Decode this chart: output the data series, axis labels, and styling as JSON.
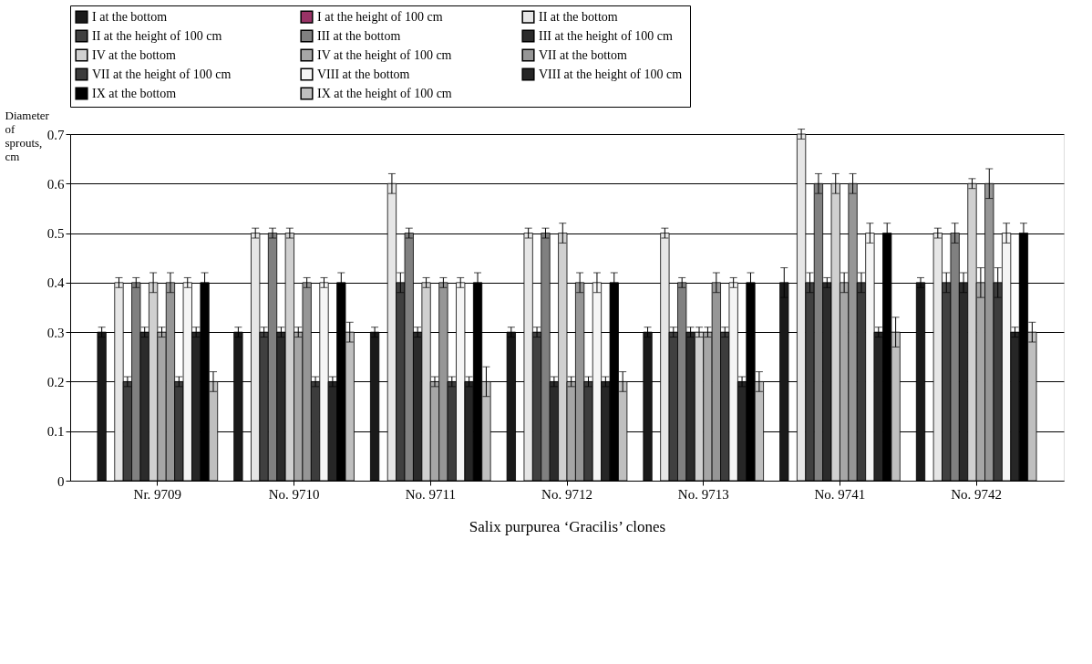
{
  "chart_data": {
    "type": "bar",
    "xlabel": "Salix purpurea ‘Gracilis’ clones",
    "ylabel": "Diameter of sprouts, cm",
    "categories": [
      "Nr. 9709",
      "No. 9710",
      "No. 9711",
      "No. 9712",
      "No. 9713",
      "No. 9741",
      "No. 9742"
    ],
    "ylim": [
      0,
      0.7
    ],
    "yticks": [
      0,
      0.1,
      0.2,
      0.3,
      0.4,
      0.5,
      0.6,
      0.7
    ],
    "grid": "y",
    "legend": "top",
    "series": [
      {
        "name": "I at the bottom",
        "color": "#1a1a1a",
        "values": [
          0.3,
          0.3,
          0.3,
          0.3,
          0.3,
          0.4,
          0.4
        ],
        "errors": [
          0.01,
          0.01,
          0.01,
          0.01,
          0.01,
          0.03,
          0.01
        ]
      },
      {
        "name": "I at the height  of 100 cm",
        "color": "#993366",
        "values": [
          null,
          null,
          null,
          null,
          null,
          null,
          null
        ]
      },
      {
        "name": "II at the bottom",
        "color": "#e6e6e6",
        "values": [
          0.4,
          0.5,
          0.6,
          0.5,
          0.5,
          0.7,
          0.5
        ],
        "errors": [
          0.01,
          0.01,
          0.02,
          0.01,
          0.01,
          0.01,
          0.01
        ]
      },
      {
        "name": "II at the height  of 100 cm",
        "color": "#404040",
        "values": [
          0.2,
          0.3,
          0.4,
          0.3,
          0.3,
          0.4,
          0.4
        ],
        "errors": [
          0.01,
          0.01,
          0.02,
          0.01,
          0.01,
          0.02,
          0.02
        ]
      },
      {
        "name": "III at the bottom",
        "color": "#808080",
        "values": [
          0.4,
          0.5,
          0.5,
          0.5,
          0.4,
          0.6,
          0.5
        ],
        "errors": [
          0.01,
          0.01,
          0.01,
          0.01,
          0.01,
          0.02,
          0.02
        ]
      },
      {
        "name": "III at the height  of 100 cm",
        "color": "#2b2b2b",
        "values": [
          0.3,
          0.3,
          0.3,
          0.2,
          0.3,
          0.4,
          0.4
        ],
        "errors": [
          0.01,
          0.01,
          0.01,
          0.01,
          0.01,
          0.01,
          0.02
        ]
      },
      {
        "name": "IV at the bottom",
        "color": "#d0d0d0",
        "values": [
          0.4,
          0.5,
          0.4,
          0.5,
          0.3,
          0.6,
          0.6
        ],
        "errors": [
          0.02,
          0.01,
          0.01,
          0.02,
          0.01,
          0.02,
          0.01
        ]
      },
      {
        "name": "IV at the height  of 100 cm",
        "color": "#a6a6a6",
        "values": [
          0.3,
          0.3,
          0.2,
          0.2,
          0.3,
          0.4,
          0.4
        ],
        "errors": [
          0.01,
          0.01,
          0.01,
          0.01,
          0.01,
          0.02,
          0.03
        ]
      },
      {
        "name": "VII at the bottom",
        "color": "#969696",
        "values": [
          0.4,
          0.4,
          0.4,
          0.4,
          0.4,
          0.6,
          0.6
        ],
        "errors": [
          0.02,
          0.01,
          0.01,
          0.02,
          0.02,
          0.02,
          0.03
        ]
      },
      {
        "name": "VII at the height  of 100 cm",
        "color": "#3c3c3c",
        "values": [
          0.2,
          0.2,
          0.2,
          0.2,
          0.3,
          0.4,
          0.4
        ],
        "errors": [
          0.01,
          0.01,
          0.01,
          0.01,
          0.01,
          0.02,
          0.03
        ]
      },
      {
        "name": "VIII at the bottom",
        "color": "#f5f5f5",
        "values": [
          0.4,
          0.4,
          0.4,
          0.4,
          0.4,
          0.5,
          0.5
        ],
        "errors": [
          0.01,
          0.01,
          0.01,
          0.02,
          0.01,
          0.02,
          0.02
        ]
      },
      {
        "name": "VIII at the height  of 100 cm",
        "color": "#262626",
        "values": [
          0.3,
          0.2,
          0.2,
          0.2,
          0.2,
          0.3,
          0.3
        ],
        "errors": [
          0.01,
          0.01,
          0.01,
          0.01,
          0.01,
          0.01,
          0.01
        ]
      },
      {
        "name": "IX at the bottom",
        "color": "#000000",
        "values": [
          0.4,
          0.4,
          0.4,
          0.4,
          0.4,
          0.5,
          0.5
        ],
        "errors": [
          0.02,
          0.02,
          0.02,
          0.02,
          0.02,
          0.02,
          0.02
        ]
      },
      {
        "name": "IX at the height  of 100 cm",
        "color": "#bfbfbf",
        "values": [
          0.2,
          0.3,
          0.2,
          0.2,
          0.2,
          0.3,
          0.3
        ],
        "errors": [
          0.02,
          0.02,
          0.03,
          0.02,
          0.02,
          0.03,
          0.02
        ]
      }
    ]
  }
}
